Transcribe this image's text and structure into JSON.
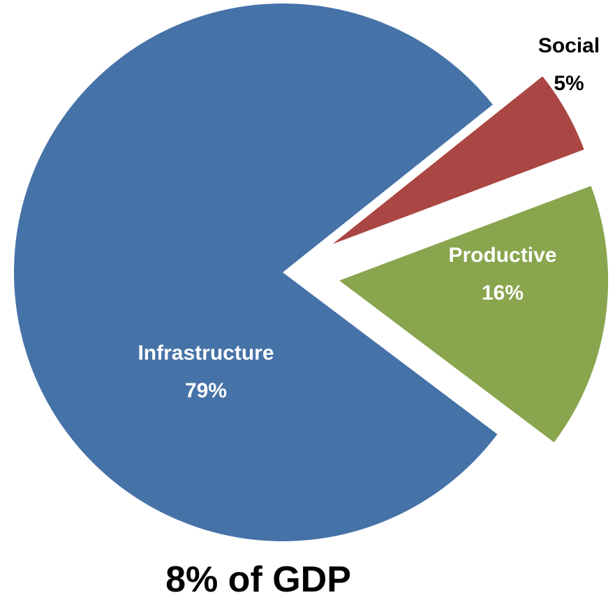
{
  "chart_data": {
    "type": "pie",
    "caption": "8% of GDP",
    "slices": [
      {
        "name": "Infrastructure",
        "value": 79,
        "label": "79%",
        "color": "#4572a7",
        "label_color": "#ffffff",
        "exploded": false
      },
      {
        "name": "Productive",
        "value": 16,
        "label": "16%",
        "color": "#89a54e",
        "label_color": "#ffffff",
        "exploded": true
      },
      {
        "name": "Social",
        "value": 5,
        "label": "5%",
        "color": "#aa4643",
        "label_color": "#000000",
        "exploded": true
      }
    ]
  }
}
